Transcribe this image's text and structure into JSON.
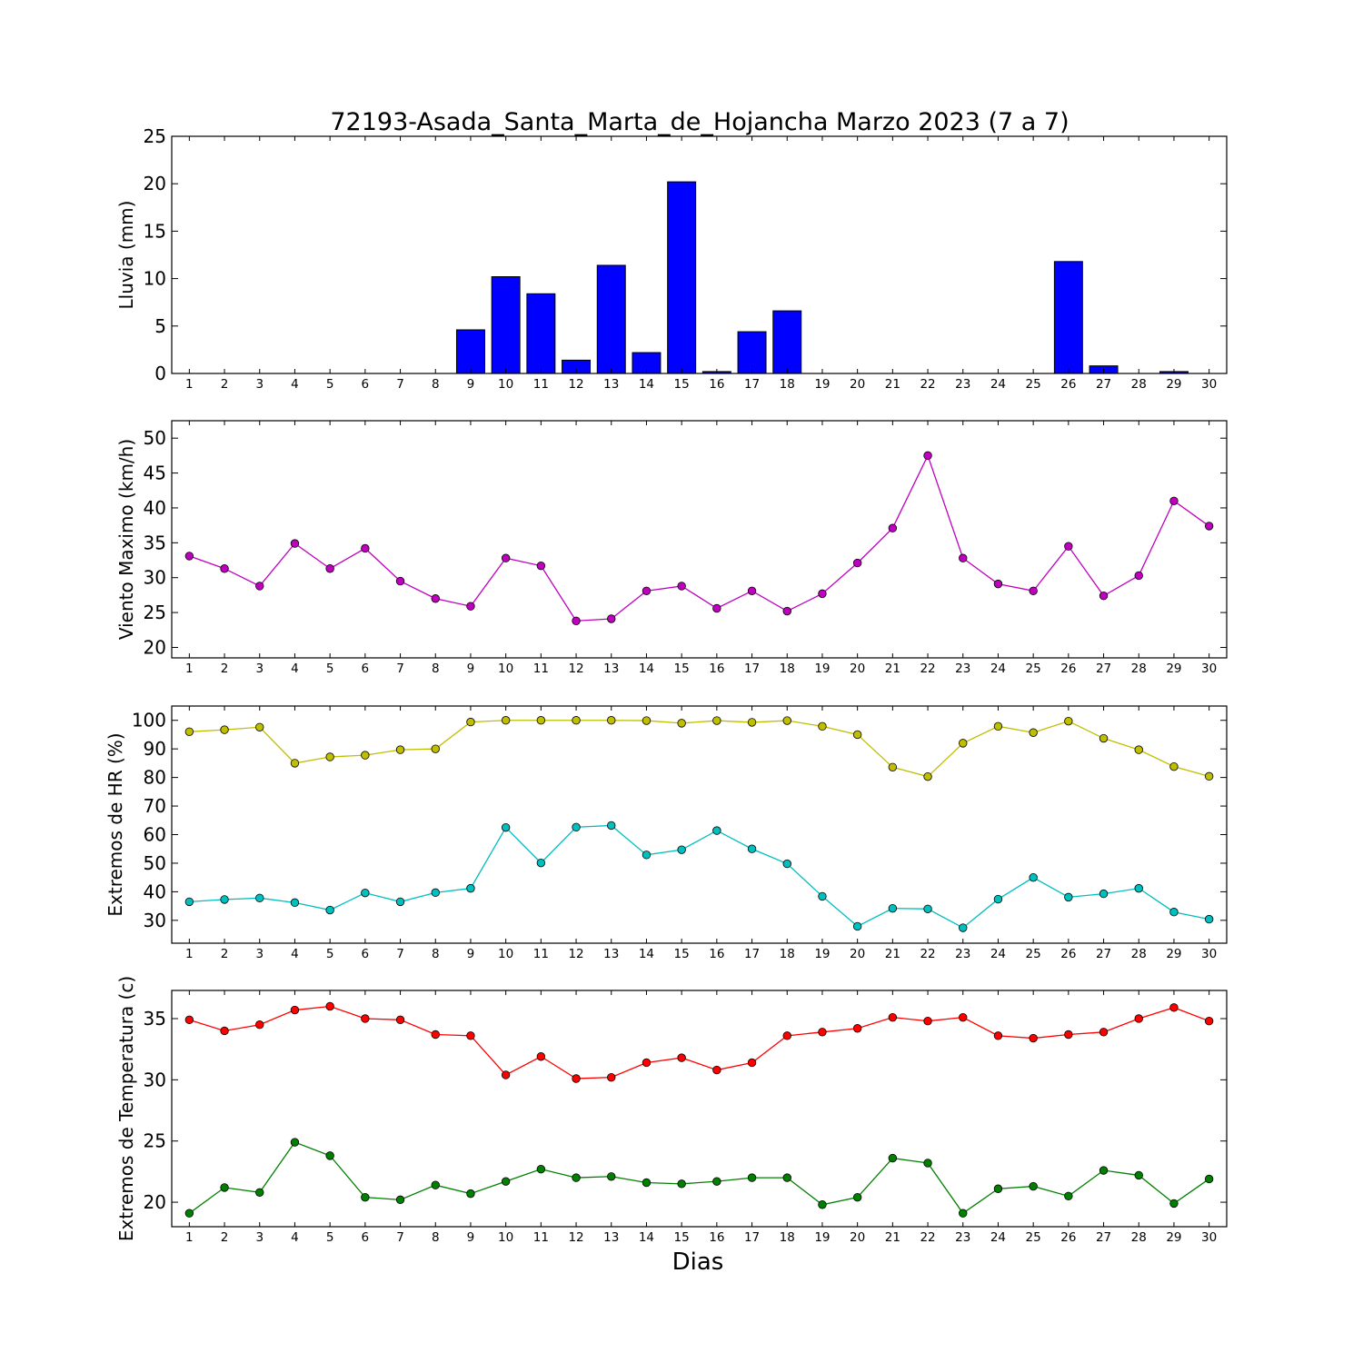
{
  "figure": {
    "title": "72193-Asada_Santa_Marta_de_Hojancha Marzo 2023  (7 a 7)",
    "xlabel": "Dias"
  },
  "chart_data": [
    {
      "type": "bar",
      "ylabel": "Lluvia (mm)",
      "ylim": [
        0,
        25
      ],
      "yticks": [
        0,
        5,
        10,
        15,
        20,
        25
      ],
      "categories": [
        1,
        2,
        3,
        4,
        5,
        6,
        7,
        8,
        9,
        10,
        11,
        12,
        13,
        14,
        15,
        16,
        17,
        18,
        19,
        20,
        21,
        22,
        23,
        24,
        25,
        26,
        27,
        28,
        29,
        30
      ],
      "values": [
        0,
        0,
        0,
        0,
        0,
        0,
        0,
        0,
        4.6,
        10.2,
        8.4,
        1.4,
        11.4,
        2.2,
        20.2,
        0.2,
        4.4,
        6.6,
        0,
        0,
        0,
        0,
        0,
        0,
        0,
        11.8,
        0.8,
        0,
        0.2,
        0
      ],
      "color": "#0000ff"
    },
    {
      "type": "line",
      "ylabel": "Viento Maximo (km/h)",
      "ylim": [
        18.5,
        52.5
      ],
      "yticks": [
        20,
        25,
        30,
        35,
        40,
        45,
        50
      ],
      "x": [
        1,
        2,
        3,
        4,
        5,
        6,
        7,
        8,
        9,
        10,
        11,
        12,
        13,
        14,
        15,
        16,
        17,
        18,
        19,
        20,
        21,
        22,
        23,
        24,
        25,
        26,
        27,
        28,
        29,
        30
      ],
      "series": [
        {
          "values": [
            33.1,
            31.3,
            28.8,
            34.9,
            31.3,
            34.2,
            29.5,
            27.0,
            25.9,
            32.8,
            31.7,
            23.8,
            24.1,
            28.1,
            28.8,
            25.6,
            28.1,
            25.2,
            27.7,
            32.1,
            37.1,
            47.5,
            32.8,
            29.1,
            28.1,
            34.5,
            27.4,
            30.3,
            41.0,
            37.4
          ],
          "color": "#bf00bf"
        }
      ]
    },
    {
      "type": "line",
      "ylabel": "Extremos de HR (%)",
      "ylim": [
        22,
        105
      ],
      "yticks": [
        30,
        40,
        50,
        60,
        70,
        80,
        90,
        100
      ],
      "x": [
        1,
        2,
        3,
        4,
        5,
        6,
        7,
        8,
        9,
        10,
        11,
        12,
        13,
        14,
        15,
        16,
        17,
        18,
        19,
        20,
        21,
        22,
        23,
        24,
        25,
        26,
        27,
        28,
        29,
        30
      ],
      "series": [
        {
          "values": [
            96,
            96.7,
            97.6,
            85,
            87.2,
            87.8,
            89.7,
            90,
            99.4,
            100,
            100,
            100,
            100,
            99.9,
            99,
            99.9,
            99.3,
            99.9,
            97.9,
            95,
            83.6,
            80.3,
            92,
            97.9,
            95.7,
            99.7,
            93.7,
            89.7,
            83.8,
            80.4
          ],
          "color": "#bfbf00"
        },
        {
          "values": [
            36.5,
            37.3,
            37.8,
            36.2,
            33.6,
            39.6,
            36.5,
            39.7,
            41.2,
            62.5,
            50.1,
            62.6,
            63.2,
            52.9,
            54.7,
            61.4,
            55,
            49.8,
            38.4,
            27.9,
            34.2,
            34,
            27.4,
            37.4,
            45,
            38.1,
            39.3,
            41.2,
            32.9,
            30.4
          ],
          "color": "#00bfbf"
        }
      ]
    },
    {
      "type": "line",
      "ylabel": "Extremos de Temperatura (c)",
      "ylim": [
        18,
        37.3
      ],
      "yticks": [
        20,
        25,
        30,
        35
      ],
      "x": [
        1,
        2,
        3,
        4,
        5,
        6,
        7,
        8,
        9,
        10,
        11,
        12,
        13,
        14,
        15,
        16,
        17,
        18,
        19,
        20,
        21,
        22,
        23,
        24,
        25,
        26,
        27,
        28,
        29,
        30
      ],
      "series": [
        {
          "values": [
            34.9,
            34,
            34.5,
            35.7,
            36,
            35,
            34.9,
            33.7,
            33.6,
            30.4,
            31.9,
            30.1,
            30.2,
            31.4,
            31.8,
            30.8,
            31.4,
            33.6,
            33.9,
            34.2,
            35.1,
            34.8,
            35.1,
            33.6,
            33.4,
            33.7,
            33.9,
            35,
            35.9,
            34.8
          ],
          "color": "#ff0000"
        },
        {
          "values": [
            19.1,
            21.2,
            20.8,
            24.9,
            23.8,
            20.4,
            20.2,
            21.4,
            20.7,
            21.7,
            22.7,
            22,
            22.1,
            21.6,
            21.5,
            21.7,
            22,
            22,
            19.8,
            20.4,
            23.6,
            23.2,
            19.1,
            21.1,
            21.3,
            20.5,
            22.6,
            22.2,
            19.9,
            21.9
          ],
          "color": "#008000"
        }
      ]
    }
  ]
}
